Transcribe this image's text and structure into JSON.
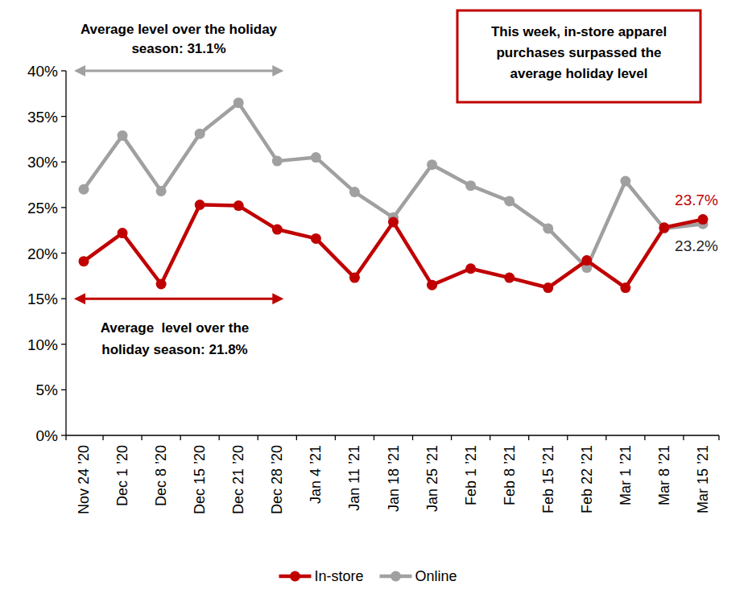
{
  "chart_data": {
    "type": "line",
    "categories": [
      "Nov 24 ’20",
      "Dec 1 ’20",
      "Dec 8 ’20",
      "Dec 15 ’20",
      "Dec 21 ’20",
      "Dec 28 ’20",
      "Jan 4 ’21",
      "Jan 11 ’21",
      "Jan 18 ’21",
      "Jan 25 ’21",
      "Feb 1 ’21",
      "Feb 8 ’21",
      "Feb 15 ’21",
      "Feb 22 ’21",
      "Mar 1 ’21",
      "Mar 8 ’21",
      "Mar 15 ’21"
    ],
    "series": [
      {
        "name": "In-store",
        "color": "#c00000",
        "marker": "circle",
        "values": [
          19.1,
          22.2,
          16.6,
          25.3,
          25.2,
          22.6,
          21.6,
          17.3,
          23.4,
          16.5,
          18.3,
          17.3,
          16.2,
          19.2,
          16.2,
          22.8,
          23.7
        ],
        "value_labels": [
          null,
          null,
          null,
          null,
          null,
          null,
          null,
          null,
          null,
          null,
          null,
          null,
          null,
          null,
          null,
          null,
          "23.7%"
        ]
      },
      {
        "name": "Online",
        "color": "#a0a0a0",
        "marker": "circle",
        "values": [
          27.0,
          32.9,
          26.8,
          33.1,
          36.5,
          30.1,
          30.5,
          26.7,
          23.9,
          29.7,
          27.4,
          25.7,
          22.7,
          18.4,
          27.9,
          22.7,
          23.2
        ],
        "value_labels": [
          null,
          null,
          null,
          null,
          null,
          null,
          null,
          null,
          null,
          null,
          null,
          null,
          null,
          null,
          null,
          null,
          "23.2%"
        ]
      }
    ],
    "ylim": [
      0,
      40
    ],
    "yticks": [
      {
        "value": 0,
        "label": "0%"
      },
      {
        "value": 5,
        "label": "5%"
      },
      {
        "value": 10,
        "label": "10%"
      },
      {
        "value": 15,
        "label": "15%"
      },
      {
        "value": 20,
        "label": "20%"
      },
      {
        "value": 25,
        "label": "25%"
      },
      {
        "value": 30,
        "label": "30%"
      },
      {
        "value": 35,
        "label": "35%"
      },
      {
        "value": 40,
        "label": "40%"
      }
    ],
    "grid": false,
    "legend": "bottom",
    "annotations": [
      "Average level over the holiday season: 31.1%",
      "This week, in-store apparel purchases surpassed the average holiday level",
      "Average  level over the holiday season: 21.8%"
    ]
  }
}
